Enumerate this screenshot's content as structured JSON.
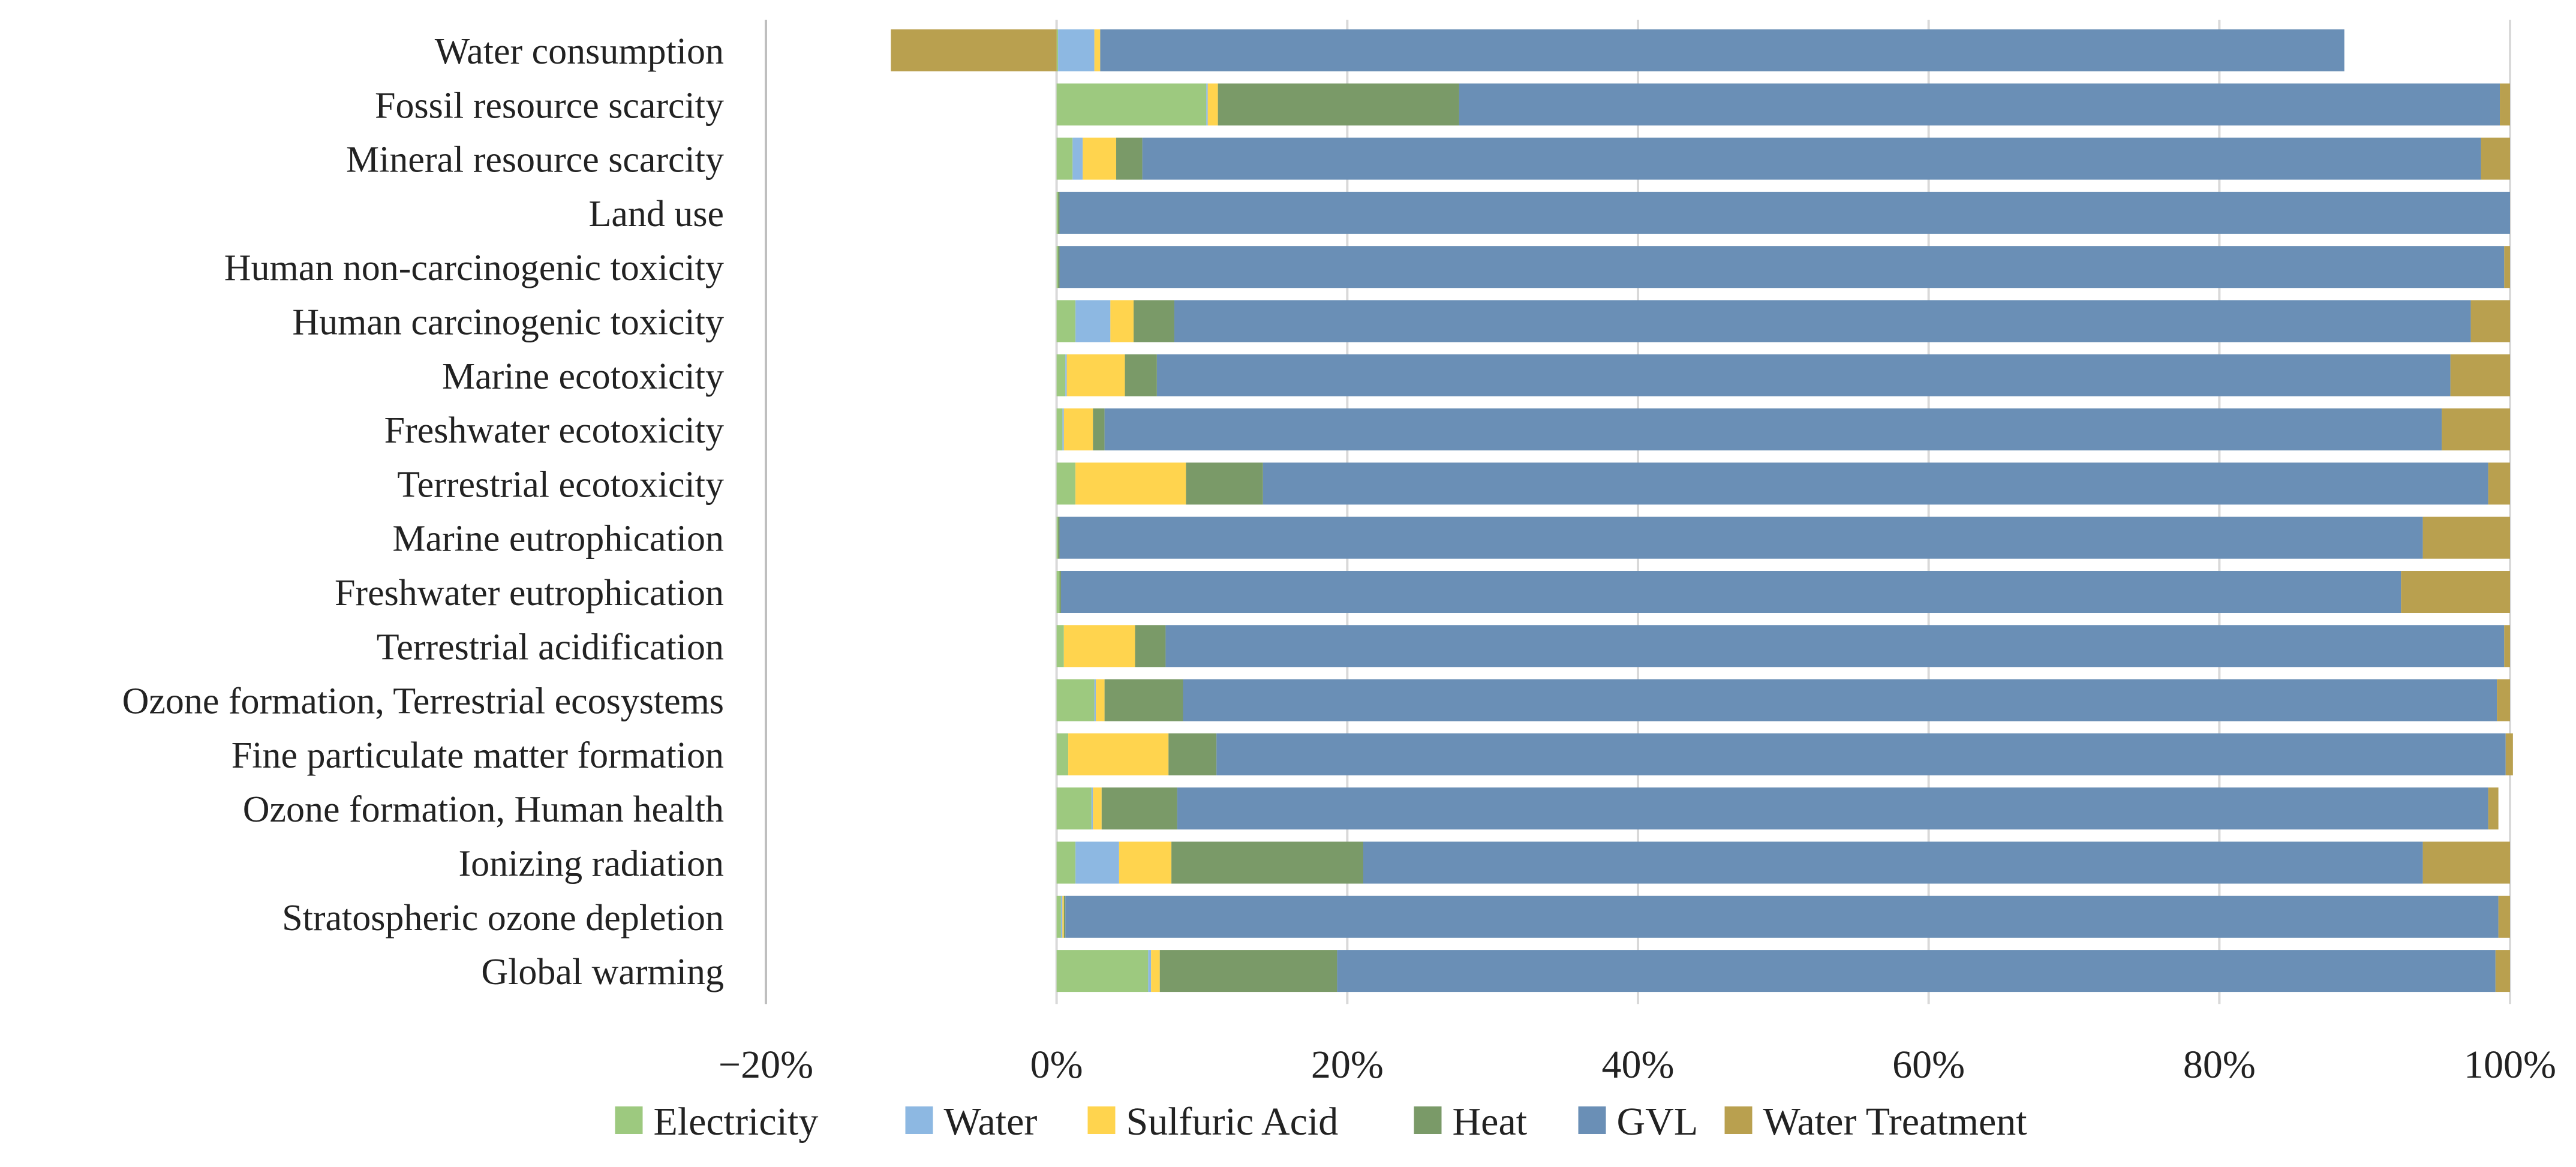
{
  "chart_data": {
    "type": "bar",
    "orientation": "horizontal",
    "stacked": true,
    "title": "",
    "xlabel": "",
    "ylabel": "",
    "xlim": [
      -20,
      100
    ],
    "x_ticks": [
      -20,
      0,
      20,
      40,
      60,
      80,
      100
    ],
    "x_tick_labels": [
      "−20%",
      "0%",
      "20%",
      "40%",
      "60%",
      "80%",
      "100%"
    ],
    "grid": true,
    "legend_position": "bottom",
    "categories": [
      "Water consumption",
      "Fossil resource scarcity",
      "Mineral resource scarcity",
      "Land use",
      "Human non-carcinogenic toxicity",
      "Human carcinogenic toxicity",
      "Marine ecotoxicity",
      "Freshwater ecotoxicity",
      "Terrestrial ecotoxicity",
      "Marine eutrophication",
      "Freshwater eutrophication",
      "Terrestrial acidification",
      "Ozone formation, Terrestrial ecosystems",
      "Fine particulate matter formation",
      "Ozone formation, Human health",
      "Ionizing radiation",
      "Stratospheric ozone depletion",
      "Global warming"
    ],
    "series": [
      {
        "name": "Electricity",
        "color": "#9dc97f",
        "values": [
          0.1,
          10.3,
          1.1,
          0.1,
          0.1,
          1.3,
          0.6,
          0.4,
          1.3,
          0.1,
          0.2,
          0.5,
          2.6,
          0.8,
          2.4,
          1.3,
          0.3,
          6.3
        ]
      },
      {
        "name": "Water",
        "color": "#8db8e2",
        "values": [
          2.5,
          0.1,
          0.7,
          0.0,
          0.0,
          2.4,
          0.1,
          0.1,
          0.0,
          0.0,
          0.0,
          0.0,
          0.1,
          0.0,
          0.1,
          3.0,
          0.1,
          0.2
        ]
      },
      {
        "name": "Sulfuric Acid",
        "color": "#ffd44e",
        "values": [
          0.4,
          0.7,
          2.3,
          0.0,
          0.0,
          1.6,
          4.0,
          2.0,
          7.6,
          0.0,
          0.0,
          4.9,
          0.6,
          6.9,
          0.6,
          3.6,
          0.1,
          0.6
        ]
      },
      {
        "name": "Heat",
        "color": "#7a9a68",
        "values": [
          0.0,
          16.6,
          1.8,
          0.1,
          0.1,
          2.8,
          2.2,
          0.8,
          5.3,
          0.1,
          0.1,
          2.1,
          5.4,
          3.3,
          5.2,
          13.2,
          0.1,
          12.2
        ]
      },
      {
        "name": "GVL",
        "color": "#6a8fb6",
        "values": [
          85.6,
          71.6,
          92.1,
          99.8,
          99.4,
          89.2,
          89.0,
          92.0,
          84.3,
          93.8,
          92.2,
          92.1,
          90.4,
          88.7,
          90.2,
          72.9,
          98.6,
          79.7
        ]
      },
      {
        "name": "Water Treatment",
        "color": "#b9a04f",
        "values": [
          -11.4,
          0.7,
          2.0,
          0.0,
          0.4,
          2.7,
          4.1,
          4.7,
          1.5,
          6.0,
          7.5,
          0.4,
          0.9,
          0.5,
          0.7,
          6.0,
          0.8,
          1.0
        ]
      }
    ]
  }
}
